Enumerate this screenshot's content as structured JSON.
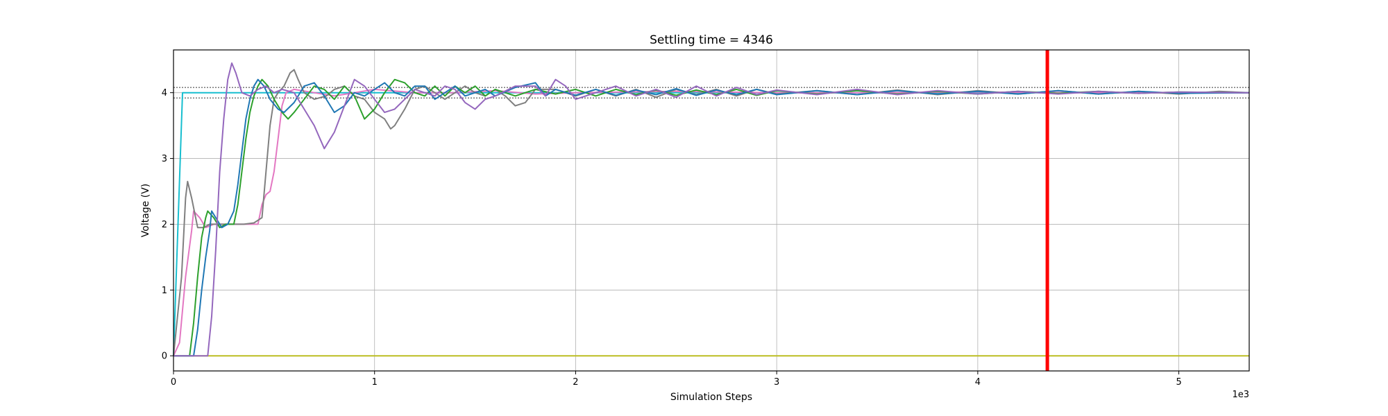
{
  "chart_data": {
    "type": "line",
    "title": "Settling time = 4346",
    "xlabel": "Simulation Steps",
    "ylabel": "Voltage (V)",
    "x_offset_label": "1e3",
    "xlim": [
      0,
      5350
    ],
    "ylim": [
      -0.23,
      4.65
    ],
    "grid": true,
    "x_ticks": [
      0,
      1000,
      2000,
      3000,
      4000,
      5000
    ],
    "x_tick_labels": [
      "0",
      "1",
      "2",
      "3",
      "4",
      "5"
    ],
    "y_ticks": [
      0,
      1,
      2,
      3,
      4
    ],
    "y_tick_labels": [
      "0",
      "1",
      "2",
      "3",
      "4"
    ],
    "band": {
      "upper": 4.08,
      "lower": 3.92,
      "color": "#333333"
    },
    "settling_time": {
      "x": 4346,
      "color": "#ff0000"
    },
    "series": [
      {
        "color": "#bcbd22",
        "points": [
          [
            0,
            0
          ],
          [
            5350,
            0
          ]
        ]
      },
      {
        "color": "#17becf",
        "points": [
          [
            0,
            0
          ],
          [
            45,
            4.0
          ],
          [
            5350,
            4.0
          ]
        ]
      },
      {
        "color": "#e377c2",
        "points": [
          [
            0,
            0
          ],
          [
            30,
            0.2
          ],
          [
            60,
            1.2
          ],
          [
            90,
            1.9
          ],
          [
            100,
            2.2
          ],
          [
            130,
            2.1
          ],
          [
            160,
            1.95
          ],
          [
            200,
            2.0
          ],
          [
            300,
            2.0
          ],
          [
            420,
            2.0
          ],
          [
            440,
            2.3
          ],
          [
            460,
            2.45
          ],
          [
            480,
            2.5
          ],
          [
            500,
            2.8
          ],
          [
            520,
            3.3
          ],
          [
            540,
            3.8
          ],
          [
            560,
            4.0
          ],
          [
            600,
            4.05
          ],
          [
            700,
            4.0
          ],
          [
            800,
            3.95
          ],
          [
            900,
            4.0
          ],
          [
            1000,
            4.05
          ],
          [
            1200,
            4.0
          ],
          [
            1400,
            4.0
          ],
          [
            1600,
            4.03
          ],
          [
            1800,
            3.98
          ],
          [
            2000,
            4.0
          ],
          [
            2500,
            4.02
          ],
          [
            3000,
            4.0
          ],
          [
            3500,
            4.0
          ],
          [
            4000,
            4.01
          ],
          [
            4500,
            4.0
          ],
          [
            5350,
            4.0
          ]
        ]
      },
      {
        "color": "#7f7f7f",
        "points": [
          [
            0,
            0
          ],
          [
            40,
            1.2
          ],
          [
            60,
            2.4
          ],
          [
            70,
            2.65
          ],
          [
            90,
            2.4
          ],
          [
            110,
            2.1
          ],
          [
            120,
            1.95
          ],
          [
            150,
            1.95
          ],
          [
            180,
            2.0
          ],
          [
            300,
            2.0
          ],
          [
            350,
            2.0
          ],
          [
            400,
            2.02
          ],
          [
            440,
            2.1
          ],
          [
            460,
            2.8
          ],
          [
            480,
            3.5
          ],
          [
            500,
            3.9
          ],
          [
            520,
            4.0
          ],
          [
            550,
            4.1
          ],
          [
            580,
            4.3
          ],
          [
            600,
            4.35
          ],
          [
            620,
            4.2
          ],
          [
            650,
            4.0
          ],
          [
            700,
            3.9
          ],
          [
            760,
            3.95
          ],
          [
            800,
            4.05
          ],
          [
            850,
            4.1
          ],
          [
            900,
            3.95
          ],
          [
            950,
            3.9
          ],
          [
            1000,
            3.7
          ],
          [
            1050,
            3.6
          ],
          [
            1080,
            3.45
          ],
          [
            1100,
            3.5
          ],
          [
            1150,
            3.75
          ],
          [
            1200,
            4.05
          ],
          [
            1250,
            4.1
          ],
          [
            1300,
            4.0
          ],
          [
            1350,
            3.9
          ],
          [
            1400,
            4.0
          ],
          [
            1450,
            4.1
          ],
          [
            1500,
            4.0
          ],
          [
            1550,
            3.95
          ],
          [
            1600,
            4.05
          ],
          [
            1650,
            3.95
          ],
          [
            1700,
            3.8
          ],
          [
            1750,
            3.85
          ],
          [
            1800,
            4.05
          ],
          [
            1900,
            4.05
          ],
          [
            2000,
            3.95
          ],
          [
            2100,
            4.05
          ],
          [
            2200,
            3.95
          ],
          [
            2300,
            4.05
          ],
          [
            2400,
            3.93
          ],
          [
            2500,
            4.05
          ],
          [
            2600,
            3.97
          ],
          [
            2700,
            4.05
          ],
          [
            2800,
            3.95
          ],
          [
            2900,
            4.05
          ],
          [
            3000,
            3.98
          ],
          [
            3200,
            4.03
          ],
          [
            3400,
            3.97
          ],
          [
            3600,
            4.04
          ],
          [
            3800,
            3.97
          ],
          [
            4000,
            4.03
          ],
          [
            4200,
            3.98
          ],
          [
            4400,
            4.03
          ],
          [
            4600,
            3.98
          ],
          [
            4800,
            4.02
          ],
          [
            5000,
            3.98
          ],
          [
            5200,
            4.02
          ],
          [
            5350,
            4.0
          ]
        ]
      },
      {
        "color": "#2ca02c",
        "points": [
          [
            0,
            0
          ],
          [
            80,
            0
          ],
          [
            100,
            0.5
          ],
          [
            120,
            1.2
          ],
          [
            140,
            1.8
          ],
          [
            160,
            2.1
          ],
          [
            170,
            2.2
          ],
          [
            200,
            2.1
          ],
          [
            230,
            1.95
          ],
          [
            260,
            2.0
          ],
          [
            300,
            2.0
          ],
          [
            320,
            2.3
          ],
          [
            340,
            2.8
          ],
          [
            360,
            3.3
          ],
          [
            380,
            3.7
          ],
          [
            400,
            3.95
          ],
          [
            420,
            4.1
          ],
          [
            440,
            4.2
          ],
          [
            470,
            4.1
          ],
          [
            500,
            3.9
          ],
          [
            540,
            3.7
          ],
          [
            570,
            3.6
          ],
          [
            600,
            3.7
          ],
          [
            650,
            3.9
          ],
          [
            700,
            4.1
          ],
          [
            750,
            4.05
          ],
          [
            800,
            3.9
          ],
          [
            850,
            4.1
          ],
          [
            900,
            3.95
          ],
          [
            950,
            3.6
          ],
          [
            1000,
            3.75
          ],
          [
            1050,
            4.0
          ],
          [
            1100,
            4.2
          ],
          [
            1150,
            4.15
          ],
          [
            1200,
            4.0
          ],
          [
            1250,
            3.95
          ],
          [
            1300,
            4.1
          ],
          [
            1350,
            3.95
          ],
          [
            1400,
            4.1
          ],
          [
            1450,
            4.0
          ],
          [
            1500,
            4.1
          ],
          [
            1550,
            3.95
          ],
          [
            1600,
            4.05
          ],
          [
            1700,
            3.95
          ],
          [
            1800,
            4.05
          ],
          [
            1900,
            3.98
          ],
          [
            2000,
            4.05
          ],
          [
            2100,
            3.95
          ],
          [
            2200,
            4.05
          ],
          [
            2300,
            3.97
          ],
          [
            2400,
            4.04
          ],
          [
            2500,
            3.96
          ],
          [
            2600,
            4.04
          ],
          [
            2700,
            3.97
          ],
          [
            2800,
            4.05
          ],
          [
            2900,
            3.96
          ],
          [
            3000,
            4.03
          ],
          [
            3200,
            3.98
          ],
          [
            3400,
            4.03
          ],
          [
            3600,
            3.98
          ],
          [
            3800,
            4.02
          ],
          [
            4000,
            3.98
          ],
          [
            4200,
            4.02
          ],
          [
            4400,
            3.99
          ],
          [
            4600,
            4.02
          ],
          [
            4800,
            3.99
          ],
          [
            5000,
            4.01
          ],
          [
            5350,
            4.0
          ]
        ]
      },
      {
        "color": "#1f77b4",
        "points": [
          [
            0,
            0
          ],
          [
            100,
            0
          ],
          [
            120,
            0.4
          ],
          [
            140,
            1.0
          ],
          [
            160,
            1.5
          ],
          [
            180,
            1.9
          ],
          [
            190,
            2.2
          ],
          [
            210,
            2.1
          ],
          [
            240,
            1.95
          ],
          [
            270,
            2.0
          ],
          [
            300,
            2.2
          ],
          [
            320,
            2.6
          ],
          [
            340,
            3.1
          ],
          [
            360,
            3.6
          ],
          [
            380,
            3.9
          ],
          [
            400,
            4.1
          ],
          [
            420,
            4.2
          ],
          [
            450,
            4.1
          ],
          [
            480,
            3.9
          ],
          [
            520,
            3.75
          ],
          [
            550,
            3.7
          ],
          [
            600,
            3.85
          ],
          [
            650,
            4.1
          ],
          [
            700,
            4.15
          ],
          [
            750,
            3.95
          ],
          [
            800,
            3.7
          ],
          [
            850,
            3.8
          ],
          [
            900,
            4.0
          ],
          [
            950,
            3.95
          ],
          [
            1000,
            4.05
          ],
          [
            1050,
            4.15
          ],
          [
            1100,
            4.0
          ],
          [
            1150,
            3.95
          ],
          [
            1200,
            4.1
          ],
          [
            1250,
            4.1
          ],
          [
            1300,
            3.9
          ],
          [
            1350,
            4.0
          ],
          [
            1400,
            4.1
          ],
          [
            1450,
            3.95
          ],
          [
            1500,
            4.0
          ],
          [
            1550,
            4.05
          ],
          [
            1600,
            3.95
          ],
          [
            1700,
            4.08
          ],
          [
            1800,
            4.15
          ],
          [
            1850,
            3.95
          ],
          [
            1900,
            4.05
          ],
          [
            2000,
            3.96
          ],
          [
            2100,
            4.05
          ],
          [
            2200,
            3.96
          ],
          [
            2300,
            4.04
          ],
          [
            2400,
            3.97
          ],
          [
            2500,
            4.06
          ],
          [
            2600,
            3.96
          ],
          [
            2700,
            4.04
          ],
          [
            2800,
            3.97
          ],
          [
            2900,
            4.05
          ],
          [
            3000,
            3.97
          ],
          [
            3200,
            4.03
          ],
          [
            3400,
            3.97
          ],
          [
            3600,
            4.03
          ],
          [
            3800,
            3.98
          ],
          [
            4000,
            4.02
          ],
          [
            4200,
            3.98
          ],
          [
            4400,
            4.03
          ],
          [
            4600,
            3.98
          ],
          [
            4800,
            4.02
          ],
          [
            5000,
            3.99
          ],
          [
            5350,
            4.0
          ]
        ]
      },
      {
        "color": "#9467bd",
        "points": [
          [
            0,
            0
          ],
          [
            170,
            0
          ],
          [
            190,
            0.6
          ],
          [
            210,
            1.6
          ],
          [
            230,
            2.8
          ],
          [
            250,
            3.6
          ],
          [
            270,
            4.2
          ],
          [
            290,
            4.45
          ],
          [
            310,
            4.3
          ],
          [
            340,
            4.0
          ],
          [
            380,
            3.95
          ],
          [
            420,
            4.05
          ],
          [
            460,
            4.1
          ],
          [
            500,
            4.0
          ],
          [
            540,
            4.05
          ],
          [
            600,
            4.0
          ],
          [
            650,
            3.75
          ],
          [
            700,
            3.5
          ],
          [
            750,
            3.15
          ],
          [
            800,
            3.4
          ],
          [
            850,
            3.8
          ],
          [
            900,
            4.2
          ],
          [
            950,
            4.1
          ],
          [
            1000,
            3.9
          ],
          [
            1050,
            3.7
          ],
          [
            1100,
            3.75
          ],
          [
            1150,
            3.9
          ],
          [
            1200,
            4.05
          ],
          [
            1250,
            4.0
          ],
          [
            1300,
            3.95
          ],
          [
            1350,
            4.1
          ],
          [
            1400,
            4.05
          ],
          [
            1450,
            3.85
          ],
          [
            1500,
            3.75
          ],
          [
            1550,
            3.9
          ],
          [
            1600,
            3.95
          ],
          [
            1700,
            4.1
          ],
          [
            1800,
            4.1
          ],
          [
            1850,
            3.95
          ],
          [
            1900,
            4.2
          ],
          [
            1950,
            4.1
          ],
          [
            2000,
            3.9
          ],
          [
            2100,
            4.0
          ],
          [
            2200,
            4.1
          ],
          [
            2300,
            3.95
          ],
          [
            2400,
            4.05
          ],
          [
            2500,
            3.93
          ],
          [
            2600,
            4.1
          ],
          [
            2700,
            3.95
          ],
          [
            2800,
            4.08
          ],
          [
            2900,
            3.97
          ],
          [
            3000,
            4.04
          ],
          [
            3200,
            3.97
          ],
          [
            3400,
            4.05
          ],
          [
            3600,
            3.97
          ],
          [
            3800,
            4.03
          ],
          [
            4000,
            3.98
          ],
          [
            4200,
            4.02
          ],
          [
            4400,
            3.98
          ],
          [
            4600,
            4.02
          ],
          [
            4800,
            3.99
          ],
          [
            5000,
            4.01
          ],
          [
            5350,
            4.0
          ]
        ]
      }
    ]
  }
}
